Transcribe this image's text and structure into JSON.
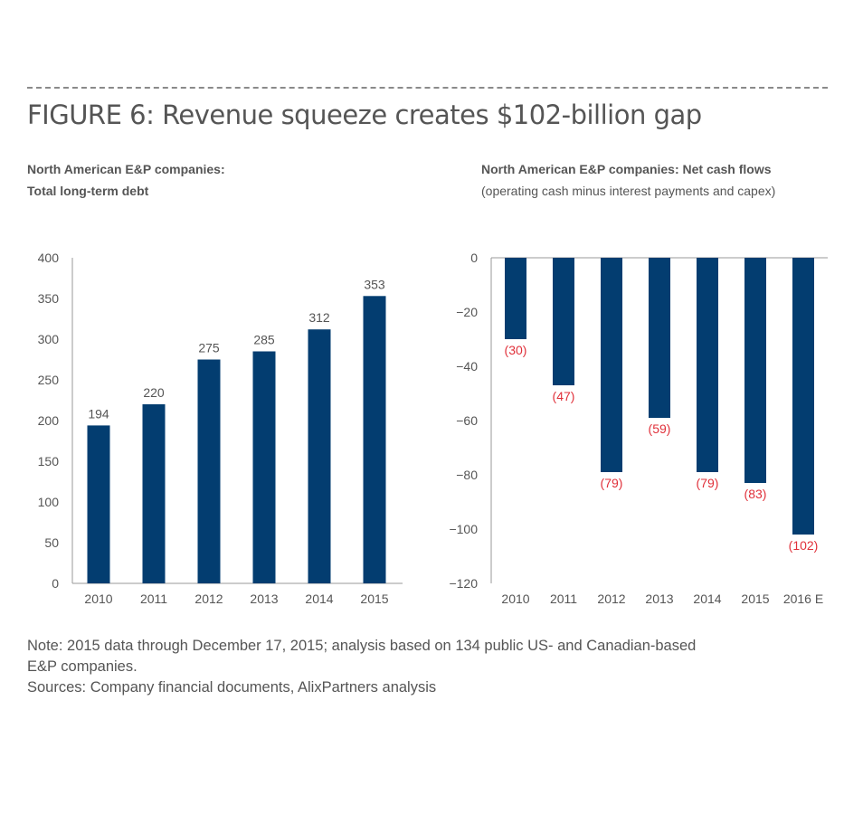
{
  "figure_title": "FIGURE 6: Revenue squeeze creates $102-billion gap",
  "note_lines": [
    "Note: 2015 data through December 17, 2015; analysis based on 134 public US- and Canadian-based",
    "E&P companies.",
    "Sources: Company financial documents, AlixPartners analysis"
  ],
  "colors": {
    "bar": "#033d70",
    "negative_label": "#e0303a",
    "text": "#555555"
  },
  "chart_data": [
    {
      "type": "bar",
      "title_lines": [
        "North American E&P companies:",
        "Total long-term debt"
      ],
      "categories": [
        "2010",
        "2011",
        "2012",
        "2013",
        "2014",
        "2015"
      ],
      "values": [
        194,
        220,
        275,
        285,
        312,
        353
      ],
      "data_labels": [
        "194",
        "220",
        "275",
        "285",
        "312",
        "353"
      ],
      "ylim": [
        0,
        400
      ],
      "yticks": [
        0,
        50,
        100,
        150,
        200,
        250,
        300,
        350,
        400
      ],
      "grid": false
    },
    {
      "type": "bar",
      "title_lines": [
        "North American E&P companies: Net cash flows",
        "(operating cash minus interest payments and capex)"
      ],
      "categories": [
        "2010",
        "2011",
        "2012",
        "2013",
        "2014",
        "2015",
        "2016 E"
      ],
      "values": [
        -30,
        -47,
        -79,
        -59,
        -79,
        -83,
        -102
      ],
      "data_labels": [
        "(30)",
        "(47)",
        "(79)",
        "(59)",
        "(79)",
        "(83)",
        "(102)"
      ],
      "ylim": [
        -120,
        0
      ],
      "yticks": [
        0,
        -20,
        -40,
        -60,
        -80,
        -100,
        -120
      ],
      "ytick_labels": [
        "0",
        "−20",
        "−40",
        "−60",
        "−80",
        "−100",
        "−120"
      ],
      "grid": false
    }
  ]
}
